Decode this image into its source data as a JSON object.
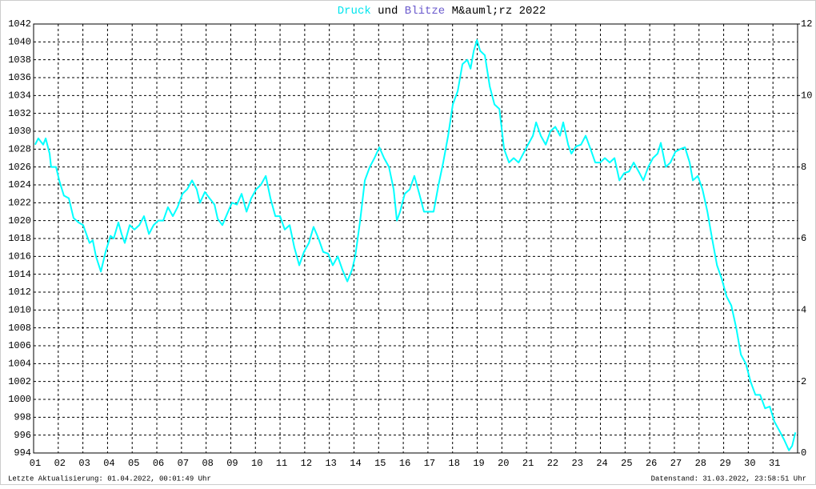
{
  "chart_data": {
    "type": "line",
    "title_parts": [
      {
        "text": "Druck",
        "color": "#00e5ee"
      },
      {
        "text": "und",
        "color": "#000000"
      },
      {
        "text": "Blitze",
        "color": "#6a5acd"
      },
      {
        "text": "M&auml;rz 2022",
        "color": "#000000"
      }
    ],
    "footer_left": "Letzte Aktualisierung: 01.04.2022, 00:01:49 Uhr",
    "footer_right": "Datenstand: 31.03.2022, 23:58:51 Uhr",
    "grid": true,
    "xlim": [
      1,
      32
    ],
    "xticks": [
      {
        "value": 1,
        "label": "01"
      },
      {
        "value": 2,
        "label": "02"
      },
      {
        "value": 3,
        "label": "03"
      },
      {
        "value": 4,
        "label": "04"
      },
      {
        "value": 5,
        "label": "05"
      },
      {
        "value": 6,
        "label": "06"
      },
      {
        "value": 7,
        "label": "07"
      },
      {
        "value": 8,
        "label": "08"
      },
      {
        "value": 9,
        "label": "09"
      },
      {
        "value": 10,
        "label": "10"
      },
      {
        "value": 11,
        "label": "11"
      },
      {
        "value": 12,
        "label": "12"
      },
      {
        "value": 13,
        "label": "13"
      },
      {
        "value": 14,
        "label": "14"
      },
      {
        "value": 15,
        "label": "15"
      },
      {
        "value": 16,
        "label": "16"
      },
      {
        "value": 17,
        "label": "17"
      },
      {
        "value": 18,
        "label": "18"
      },
      {
        "value": 19,
        "label": "19"
      },
      {
        "value": 20,
        "label": "20"
      },
      {
        "value": 21,
        "label": "21"
      },
      {
        "value": 22,
        "label": "22"
      },
      {
        "value": 23,
        "label": "23"
      },
      {
        "value": 24,
        "label": "24"
      },
      {
        "value": 25,
        "label": "25"
      },
      {
        "value": 26,
        "label": "26"
      },
      {
        "value": 27,
        "label": "27"
      },
      {
        "value": 28,
        "label": "28"
      },
      {
        "value": 29,
        "label": "29"
      },
      {
        "value": 30,
        "label": "30"
      },
      {
        "value": 31,
        "label": "31"
      }
    ],
    "ylim": [
      994,
      1042
    ],
    "yticks": [
      994,
      996,
      998,
      1000,
      1002,
      1004,
      1006,
      1008,
      1010,
      1012,
      1014,
      1016,
      1018,
      1020,
      1022,
      1024,
      1026,
      1028,
      1030,
      1032,
      1034,
      1036,
      1038,
      1040,
      1042
    ],
    "y2lim": [
      0,
      12
    ],
    "y2ticks": [
      0,
      2,
      4,
      6,
      8,
      10,
      12
    ],
    "x": [
      1.06,
      1.19,
      1.39,
      1.49,
      1.65,
      1.71,
      1.91,
      2.04,
      2.23,
      2.43,
      2.62,
      2.82,
      3.01,
      3.14,
      3.27,
      3.4,
      3.53,
      3.73,
      3.92,
      4.12,
      4.25,
      4.44,
      4.57,
      4.7,
      4.9,
      5.09,
      5.29,
      5.48,
      5.68,
      5.87,
      6.06,
      6.26,
      6.45,
      6.65,
      6.84,
      7.04,
      7.23,
      7.43,
      7.62,
      7.75,
      7.95,
      8.14,
      8.34,
      8.47,
      8.66,
      8.86,
      9.05,
      9.25,
      9.44,
      9.64,
      9.83,
      10.03,
      10.22,
      10.42,
      10.61,
      10.81,
      11.0,
      11.19,
      11.39,
      11.58,
      11.78,
      11.97,
      12.17,
      12.36,
      12.56,
      12.75,
      12.95,
      13.14,
      13.34,
      13.53,
      13.73,
      13.92,
      14.05,
      14.25,
      14.44,
      14.64,
      14.83,
      15.03,
      15.22,
      15.42,
      15.61,
      15.74,
      15.87,
      16.06,
      16.26,
      16.45,
      16.65,
      16.84,
      17.04,
      17.23,
      17.43,
      17.62,
      17.82,
      18.01,
      18.21,
      18.4,
      18.6,
      18.73,
      18.86,
      18.99,
      19.12,
      19.31,
      19.51,
      19.7,
      19.9,
      20.09,
      20.29,
      20.48,
      20.68,
      20.87,
      21.06,
      21.26,
      21.39,
      21.58,
      21.78,
      21.97,
      22.17,
      22.36,
      22.49,
      22.69,
      22.82,
      23.01,
      23.21,
      23.4,
      23.6,
      23.79,
      23.99,
      24.18,
      24.38,
      24.57,
      24.77,
      24.96,
      25.16,
      25.35,
      25.55,
      25.74,
      25.94,
      26.13,
      26.32,
      26.45,
      26.65,
      26.84,
      27.04,
      27.23,
      27.43,
      27.62,
      27.75,
      27.95,
      28.14,
      28.34,
      28.53,
      28.73,
      28.92,
      29.12,
      29.31,
      29.51,
      29.7,
      29.9,
      30.09,
      30.29,
      30.48,
      30.68,
      30.87,
      31.06,
      31.26,
      31.45,
      31.65,
      31.78,
      31.91
    ],
    "series": [
      {
        "name": "Druck",
        "color": "#00ffff",
        "values": [
          1028.5,
          1029.2,
          1028.5,
          1029.2,
          1027.5,
          1026,
          1026,
          1024.5,
          1022.8,
          1022.5,
          1020.3,
          1019.8,
          1019.5,
          1018.5,
          1017.5,
          1017.8,
          1016,
          1014.3,
          1016.5,
          1018.3,
          1018,
          1019.8,
          1018.5,
          1017.5,
          1019.5,
          1019,
          1019.5,
          1020.5,
          1018.5,
          1019.5,
          1020,
          1020,
          1021.5,
          1020.5,
          1021.5,
          1023,
          1023.5,
          1024.5,
          1023.5,
          1022,
          1023.2,
          1022.5,
          1021.8,
          1020.2,
          1019.5,
          1020.8,
          1022,
          1021.8,
          1023,
          1021,
          1022.5,
          1023.5,
          1024,
          1025,
          1022.5,
          1020.5,
          1020.5,
          1019,
          1019.5,
          1017,
          1015,
          1016.5,
          1017.5,
          1019.3,
          1018,
          1016.5,
          1016.3,
          1015,
          1016,
          1014.5,
          1013.2,
          1014.5,
          1016,
          1020,
          1024.5,
          1026,
          1027,
          1028.2,
          1027,
          1026,
          1023.5,
          1020,
          1021,
          1023,
          1023.5,
          1025,
          1023,
          1021,
          1021,
          1021,
          1024,
          1026.5,
          1029.5,
          1033,
          1034.5,
          1037.5,
          1038,
          1037,
          1039,
          1040.2,
          1039,
          1038.5,
          1035,
          1033,
          1032.5,
          1028,
          1026.5,
          1027,
          1026.5,
          1027.5,
          1028.5,
          1029.5,
          1031,
          1029.5,
          1028.5,
          1030,
          1030.5,
          1029.5,
          1031,
          1028.5,
          1027.5,
          1028.3,
          1028.5,
          1029.5,
          1028,
          1026.5,
          1026.5,
          1027,
          1026.5,
          1027,
          1024.5,
          1025.3,
          1025.5,
          1026.5,
          1025.5,
          1024.5,
          1026,
          1027,
          1027.5,
          1028.7,
          1026,
          1026.5,
          1027.7,
          1028,
          1028.2,
          1026.5,
          1024.5,
          1025,
          1023.5,
          1021,
          1018,
          1015,
          1013.5,
          1011.5,
          1010.5,
          1008,
          1005,
          1004,
          1002,
          1000.5,
          1000.5,
          999,
          999.2,
          997.5,
          996.5,
          995.5,
          994.3,
          994.8,
          996.3
        ]
      }
    ]
  }
}
